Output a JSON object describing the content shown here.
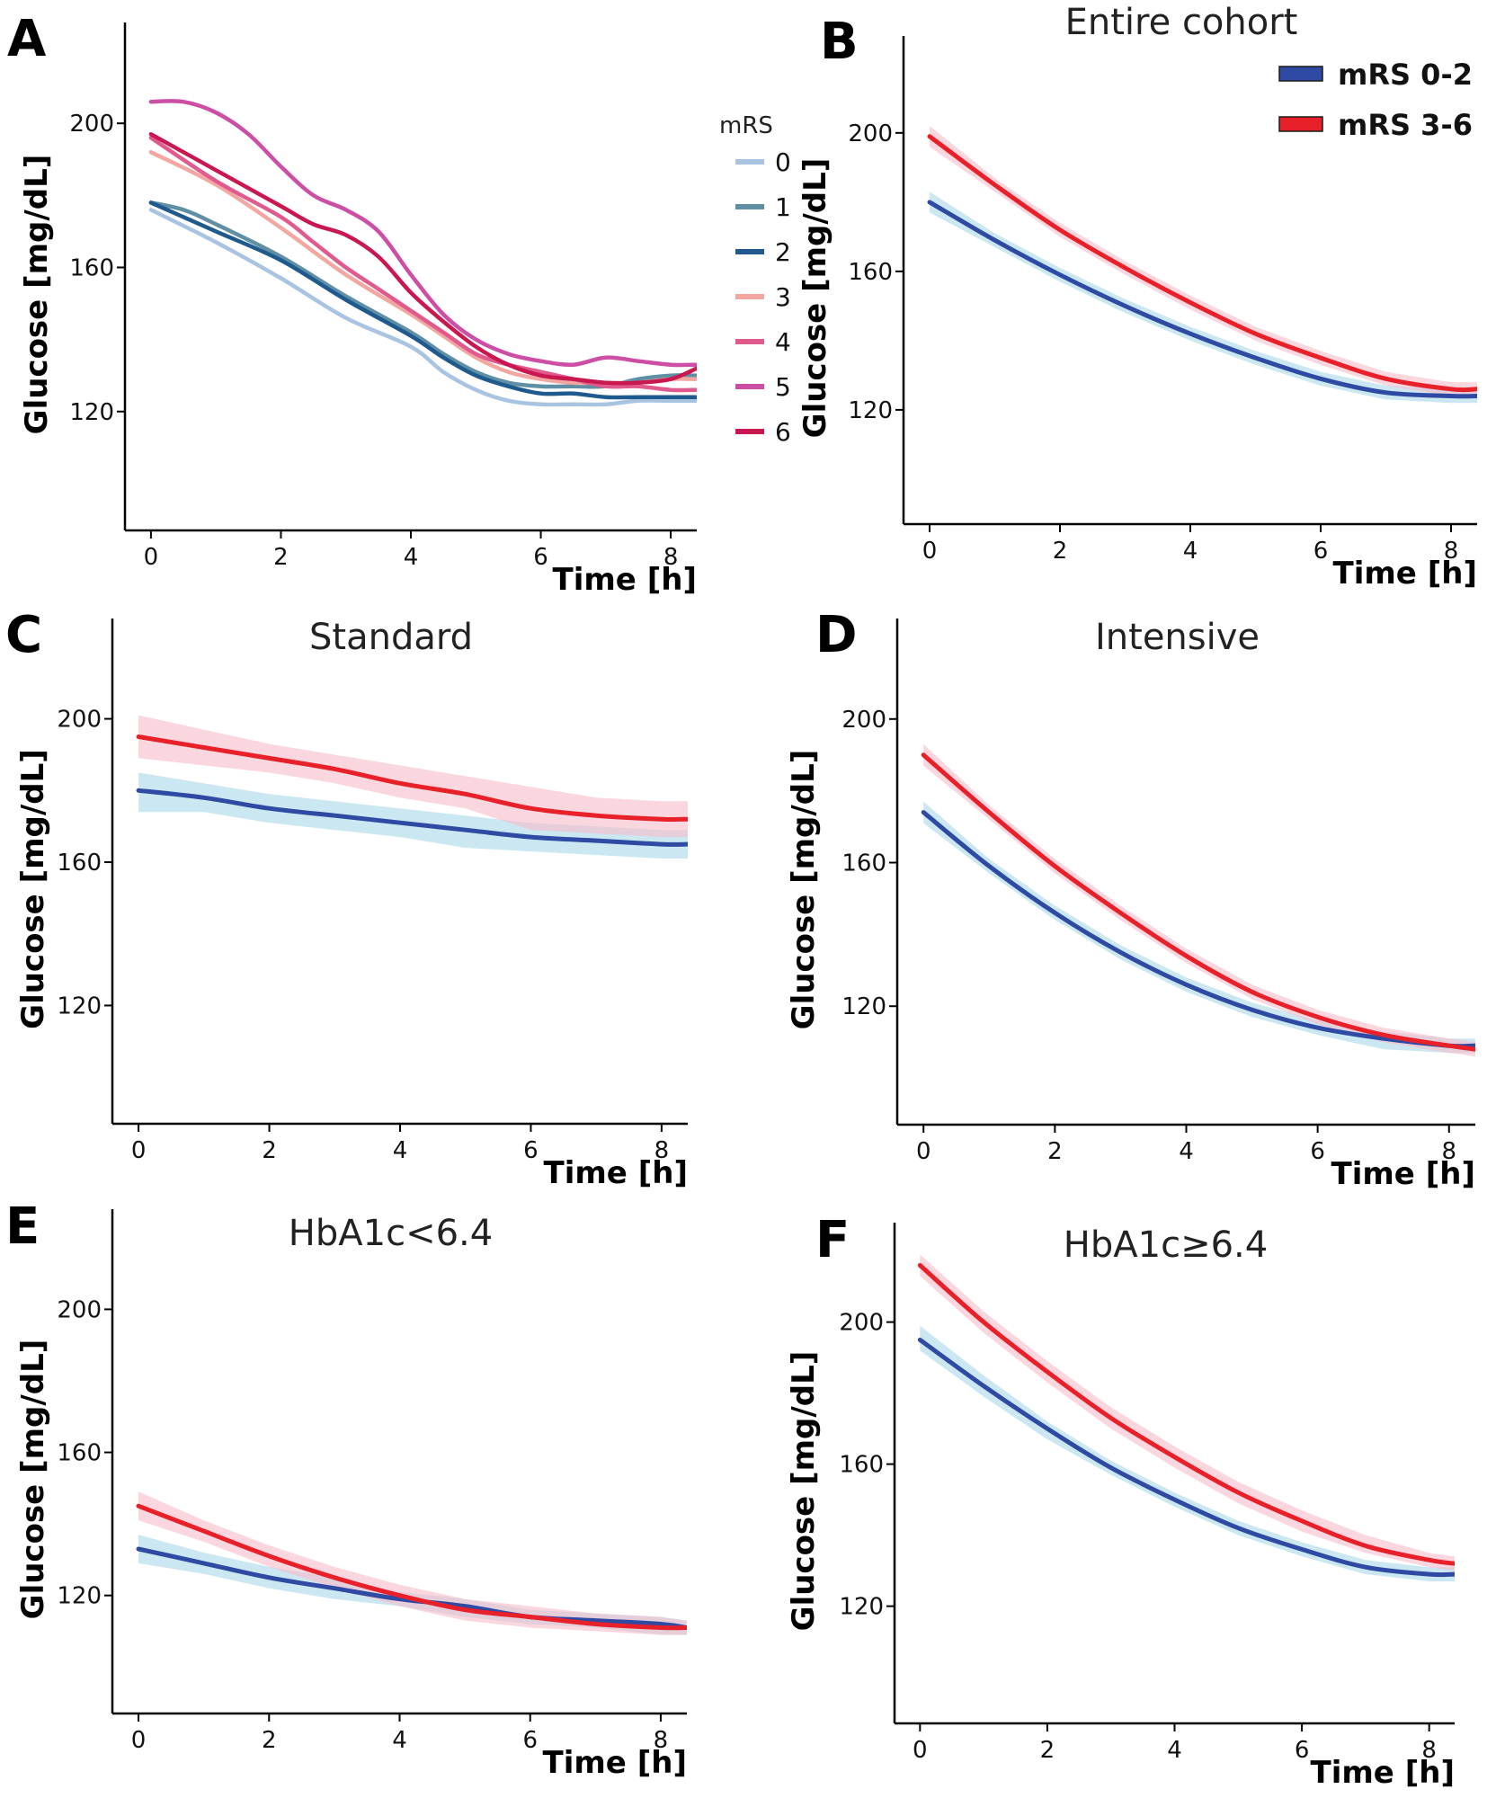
{
  "chart_data": [
    {
      "id": "A",
      "type": "line",
      "letter": "A",
      "title": "",
      "xlabel": "Time [h]",
      "ylabel": "Glucose [mg/dL]",
      "xlim": [
        -0.4,
        8.4
      ],
      "ylim": [
        87,
        228
      ],
      "xticks": [
        0,
        2,
        4,
        6,
        8
      ],
      "yticks": [
        120,
        160,
        200
      ],
      "legend": {
        "title": "mRS",
        "position": "right"
      },
      "series": [
        {
          "name": "0",
          "color": "#a9c4e0",
          "band": false,
          "x": [
            0,
            1,
            2,
            3,
            4,
            4.5,
            5,
            5.5,
            6,
            6.5,
            7,
            7.5,
            8,
            8.4
          ],
          "y": [
            176,
            167,
            157,
            146,
            138,
            131,
            126,
            123,
            122,
            122,
            122,
            123,
            123,
            123
          ]
        },
        {
          "name": "1",
          "color": "#5f8fa5",
          "band": false,
          "x": [
            0,
            0.5,
            1,
            2,
            3,
            4,
            4.5,
            5,
            5.5,
            6,
            6.5,
            7,
            7.5,
            8,
            8.4
          ],
          "y": [
            178,
            176,
            172,
            163,
            152,
            142,
            136,
            131,
            128,
            127,
            127,
            127,
            129,
            130,
            130
          ]
        },
        {
          "name": "2",
          "color": "#1f5a8f",
          "band": false,
          "x": [
            0,
            1,
            2,
            3,
            4,
            4.5,
            5,
            5.5,
            6,
            6.5,
            7,
            7.5,
            8,
            8.4
          ],
          "y": [
            178,
            170,
            162,
            151,
            141,
            135,
            130,
            127,
            125,
            125,
            124,
            124,
            124,
            124
          ]
        },
        {
          "name": "3",
          "color": "#f3a7a0",
          "band": false,
          "x": [
            0,
            1,
            2,
            3,
            4,
            4.5,
            5,
            5.5,
            6,
            6.5,
            7,
            7.5,
            8,
            8.4
          ],
          "y": [
            192,
            183,
            171,
            158,
            147,
            141,
            135,
            131,
            129,
            128,
            128,
            128,
            129,
            129
          ]
        },
        {
          "name": "4",
          "color": "#e05a8d",
          "band": false,
          "x": [
            0,
            1,
            2,
            2.5,
            3,
            3.5,
            4,
            4.5,
            5,
            5.5,
            6,
            6.5,
            7,
            7.5,
            8,
            8.4
          ],
          "y": [
            196,
            184,
            174,
            167,
            160,
            154,
            148,
            142,
            136,
            133,
            131,
            129,
            127,
            127,
            126,
            126
          ]
        },
        {
          "name": "5",
          "color": "#cc4fa5",
          "band": false,
          "x": [
            0,
            0.5,
            1,
            1.5,
            2,
            2.5,
            3,
            3.5,
            4,
            4.5,
            5,
            5.5,
            6,
            6.5,
            7,
            7.5,
            8,
            8.4
          ],
          "y": [
            206,
            206,
            203,
            197,
            188,
            180,
            176,
            170,
            158,
            147,
            140,
            136,
            134,
            133,
            135,
            134,
            133,
            133
          ]
        },
        {
          "name": "6",
          "color": "#c8184f",
          "band": false,
          "x": [
            0,
            1,
            2,
            2.5,
            3,
            3.5,
            4,
            4.5,
            5,
            5.5,
            6,
            6.5,
            7,
            7.5,
            8,
            8.4
          ],
          "y": [
            197,
            187,
            177,
            172,
            169,
            163,
            153,
            145,
            138,
            133,
            130,
            129,
            128,
            128,
            129,
            132
          ]
        }
      ]
    },
    {
      "id": "B",
      "type": "line",
      "letter": "B",
      "title": "Entire cohort",
      "xlabel": "Time [h]",
      "ylabel": "Glucose [mg/dL]",
      "xlim": [
        -0.4,
        8.4
      ],
      "ylim": [
        87,
        228
      ],
      "xticks": [
        0,
        2,
        4,
        6,
        8
      ],
      "yticks": [
        120,
        160,
        200
      ],
      "legend": {
        "position": "top-right",
        "entries": [
          "mRS 0-2",
          "mRS 3-6"
        ]
      },
      "series": [
        {
          "name": "mRS 0-2",
          "color": "#2e4aa3",
          "band": true,
          "band_color": "#a8d8ea",
          "x": [
            0,
            1,
            2,
            3,
            4,
            5,
            6,
            7,
            8,
            8.4
          ],
          "y": [
            180,
            169,
            159,
            150,
            142,
            135,
            129,
            125,
            124,
            124
          ],
          "lower": [
            177,
            167,
            157,
            148,
            140,
            133,
            127,
            123,
            122,
            122
          ],
          "upper": [
            183,
            171,
            161,
            152,
            144,
            137,
            131,
            127,
            126,
            126
          ]
        },
        {
          "name": "mRS 3-6",
          "color": "#e8202a",
          "band": true,
          "band_color": "#f7bcc8",
          "x": [
            0,
            1,
            2,
            3,
            4,
            5,
            6,
            7,
            8,
            8.4
          ],
          "y": [
            199,
            185,
            172,
            161,
            151,
            142,
            135,
            129,
            126,
            126
          ],
          "lower": [
            196,
            183,
            170,
            159,
            149,
            140,
            133,
            127,
            124,
            124
          ],
          "upper": [
            202,
            187,
            174,
            163,
            153,
            144,
            137,
            131,
            128,
            128
          ]
        }
      ]
    },
    {
      "id": "C",
      "type": "line",
      "letter": "C",
      "title": "Standard",
      "xlabel": "Time [h]",
      "ylabel": "Glucose [mg/dL]",
      "xlim": [
        -0.4,
        8.4
      ],
      "ylim": [
        87,
        228
      ],
      "xticks": [
        0,
        2,
        4,
        6,
        8
      ],
      "yticks": [
        120,
        160,
        200
      ],
      "series": [
        {
          "name": "mRS 0-2",
          "color": "#2e4aa3",
          "band": true,
          "band_color": "#a8d8ea",
          "x": [
            0,
            1,
            2,
            3,
            4,
            5,
            6,
            7,
            8,
            8.4
          ],
          "y": [
            180,
            178,
            175,
            173,
            171,
            169,
            167,
            166,
            165,
            165
          ],
          "lower": [
            174,
            174,
            171,
            169,
            167,
            164,
            163,
            162,
            161,
            161
          ],
          "upper": [
            185,
            182,
            179,
            177,
            175,
            173,
            171,
            170,
            169,
            169
          ]
        },
        {
          "name": "mRS 3-6",
          "color": "#e8202a",
          "band": true,
          "band_color": "#f7bcc8",
          "x": [
            0,
            1,
            2,
            3,
            4,
            5,
            6,
            7,
            8,
            8.4
          ],
          "y": [
            195,
            192,
            189,
            186,
            182,
            179,
            175,
            173,
            172,
            172
          ],
          "lower": [
            189,
            187,
            185,
            182,
            178,
            175,
            169,
            168,
            167,
            167
          ],
          "upper": [
            201,
            197,
            193,
            190,
            187,
            184,
            181,
            178,
            177,
            177
          ]
        }
      ]
    },
    {
      "id": "D",
      "type": "line",
      "letter": "D",
      "title": "Intensive",
      "xlabel": "Time [h]",
      "ylabel": "Glucose [mg/dL]",
      "xlim": [
        -0.4,
        8.4
      ],
      "ylim": [
        87,
        228
      ],
      "xticks": [
        0,
        2,
        4,
        6,
        8
      ],
      "yticks": [
        120,
        160,
        200
      ],
      "series": [
        {
          "name": "mRS 0-2",
          "color": "#2e4aa3",
          "band": true,
          "band_color": "#a8d8ea",
          "x": [
            0,
            1,
            2,
            3,
            4,
            5,
            6,
            7,
            8,
            8.4
          ],
          "y": [
            174,
            159,
            146,
            135,
            126,
            119,
            114,
            111,
            109,
            109
          ],
          "lower": [
            171,
            157,
            144,
            133,
            124,
            117,
            112,
            108,
            107,
            107
          ],
          "upper": [
            177,
            161,
            148,
            137,
            128,
            121,
            116,
            113,
            111,
            111
          ]
        },
        {
          "name": "mRS 3-6",
          "color": "#e8202a",
          "band": true,
          "band_color": "#f7bcc8",
          "x": [
            0,
            1,
            2,
            3,
            4,
            5,
            6,
            7,
            8,
            8.4
          ],
          "y": [
            190,
            174,
            159,
            146,
            134,
            124,
            117,
            112,
            109,
            108
          ],
          "lower": [
            187,
            172,
            157,
            144,
            132,
            122,
            115,
            110,
            107,
            106
          ],
          "upper": [
            193,
            176,
            161,
            148,
            136,
            126,
            119,
            114,
            111,
            110
          ]
        }
      ]
    },
    {
      "id": "E",
      "type": "line",
      "letter": "E",
      "title": "HbA1c<6.4",
      "xlabel": "Time [h]",
      "ylabel": "Glucose [mg/dL]",
      "xlim": [
        -0.4,
        8.4
      ],
      "ylim": [
        87,
        228
      ],
      "xticks": [
        0,
        2,
        4,
        6,
        8
      ],
      "yticks": [
        120,
        160,
        200
      ],
      "series": [
        {
          "name": "mRS 0-2",
          "color": "#2e4aa3",
          "band": true,
          "band_color": "#a8d8ea",
          "x": [
            0,
            1,
            2,
            3,
            4,
            5,
            6,
            7,
            8,
            8.4
          ],
          "y": [
            133,
            129,
            125,
            122,
            119,
            117,
            114,
            113,
            112,
            111
          ],
          "lower": [
            129,
            126,
            122,
            119,
            117,
            114,
            112,
            111,
            109,
            109
          ],
          "upper": [
            137,
            132,
            128,
            125,
            121,
            119,
            116,
            115,
            114,
            113
          ]
        },
        {
          "name": "mRS 3-6",
          "color": "#e8202a",
          "band": true,
          "band_color": "#f7bcc8",
          "x": [
            0,
            1,
            2,
            3,
            4,
            5,
            6,
            7,
            8,
            8.4
          ],
          "y": [
            145,
            138,
            131,
            125,
            120,
            116,
            114,
            112,
            111,
            111
          ],
          "lower": [
            141,
            135,
            128,
            122,
            117,
            113,
            111,
            110,
            109,
            109
          ],
          "upper": [
            149,
            141,
            134,
            128,
            123,
            119,
            117,
            115,
            114,
            113
          ]
        }
      ]
    },
    {
      "id": "F",
      "type": "line",
      "letter": "F",
      "title": "HbA1c≥6.4",
      "xlabel": "Time [h]",
      "ylabel": "Glucose [mg/dL]",
      "xlim": [
        -0.4,
        8.4
      ],
      "ylim": [
        87,
        228
      ],
      "xticks": [
        0,
        2,
        4,
        6,
        8
      ],
      "yticks": [
        120,
        160,
        200
      ],
      "series": [
        {
          "name": "mRS 0-2",
          "color": "#2e4aa3",
          "band": true,
          "band_color": "#a8d8ea",
          "x": [
            0,
            1,
            2,
            3,
            4,
            5,
            6,
            7,
            8,
            8.4
          ],
          "y": [
            195,
            182,
            170,
            159,
            150,
            142,
            136,
            131,
            129,
            129
          ],
          "lower": [
            192,
            179,
            167,
            157,
            148,
            140,
            134,
            129,
            127,
            127
          ],
          "upper": [
            199,
            185,
            172,
            161,
            152,
            144,
            138,
            133,
            131,
            131
          ]
        },
        {
          "name": "mRS 3-6",
          "color": "#e8202a",
          "band": true,
          "band_color": "#f7bcc8",
          "x": [
            0,
            1,
            2,
            3,
            4,
            5,
            6,
            7,
            8,
            8.4
          ],
          "y": [
            216,
            200,
            186,
            173,
            162,
            152,
            144,
            137,
            133,
            132
          ],
          "lower": [
            213,
            197,
            183,
            170,
            159,
            149,
            141,
            135,
            131,
            130
          ],
          "upper": [
            219,
            203,
            189,
            176,
            165,
            155,
            147,
            140,
            135,
            134
          ]
        }
      ]
    }
  ]
}
